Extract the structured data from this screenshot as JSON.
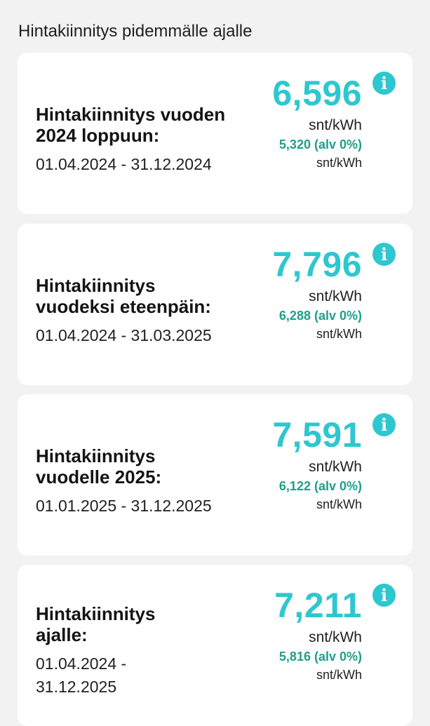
{
  "section_title": "Hintakiinnitys pidemmälle ajalle",
  "cards": [
    {
      "title_line1": "Hintakiinnitys vuoden",
      "title_line2": "2024 loppuun:",
      "dates_line1": "01.04.2024 - 31.12.2024",
      "dates_line2": "",
      "price": "6,596",
      "unit": "snt/kWh",
      "vat_price": "5,320 (alv 0%)",
      "vat_unit": "snt/kWh",
      "info_icon": "info-icon"
    },
    {
      "title_line1": "Hintakiinnitys",
      "title_line2": "vuodeksi eteenpäin:",
      "dates_line1": "01.04.2024 - 31.03.2025",
      "dates_line2": "",
      "price": "7,796",
      "unit": "snt/kWh",
      "vat_price": "6,288 (alv 0%)",
      "vat_unit": "snt/kWh",
      "info_icon": "info-icon"
    },
    {
      "title_line1": "Hintakiinnitys",
      "title_line2": "vuodelle 2025:",
      "dates_line1": "01.01.2025 - 31.12.2025",
      "dates_line2": "",
      "price": "7,591",
      "unit": "snt/kWh",
      "vat_price": "6,122 (alv 0%)",
      "vat_unit": "snt/kWh",
      "info_icon": "info-icon"
    },
    {
      "title_line1": "Hintakiinnitys",
      "title_line2": "ajalle:",
      "dates_line1": "01.04.2024 -",
      "dates_line2": "31.12.2025",
      "price": "7,211",
      "unit": "snt/kWh",
      "vat_price": "5,816 (alv 0%)",
      "vat_unit": "snt/kWh",
      "info_icon": "info-icon"
    }
  ],
  "colors": {
    "accent": "#2ec7cf",
    "vat_green": "#1f9e8c",
    "background": "#f2f2f2",
    "card": "#ffffff"
  }
}
